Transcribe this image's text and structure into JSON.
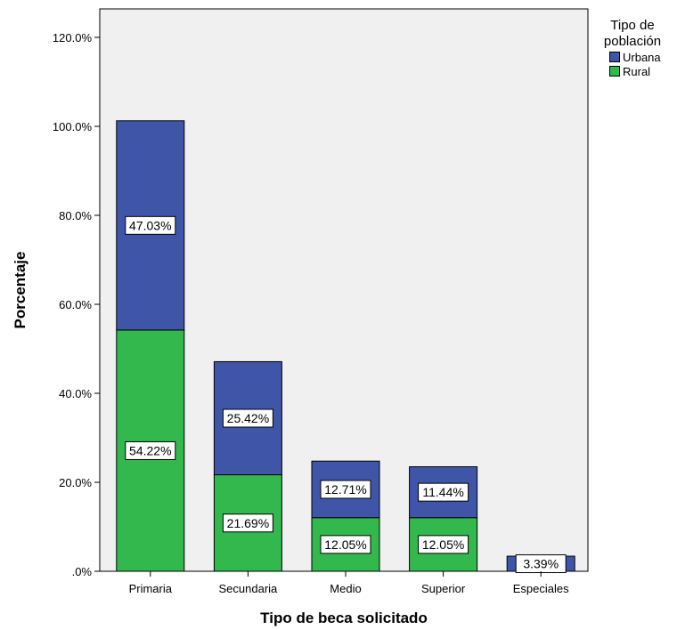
{
  "chart_data": {
    "type": "bar",
    "stacked": true,
    "categories": [
      "Primaria",
      "Secundaria",
      "Medio",
      "Superior",
      "Especiales"
    ],
    "series": [
      {
        "name": "Rural",
        "color": "#33b84e",
        "values": [
          54.22,
          21.69,
          12.05,
          12.05,
          0
        ]
      },
      {
        "name": "Urbana",
        "color": "#3f56a8",
        "values": [
          47.03,
          25.42,
          12.71,
          11.44,
          3.39
        ]
      }
    ],
    "data_labels": [
      [
        "54.22%",
        "21.69%",
        "12.05%",
        "12.05%",
        ""
      ],
      [
        "47.03%",
        "25.42%",
        "12.71%",
        "11.44%",
        "3.39%"
      ]
    ],
    "xlabel": "Tipo de beca solicitado",
    "ylabel": "Porcentaje",
    "ylim": [
      0,
      120
    ],
    "yticks": [
      0,
      20,
      40,
      60,
      80,
      100,
      120
    ],
    "ytick_labels": [
      ".0%",
      "20.0%",
      "40.0%",
      "60.0%",
      "80.0%",
      "100.0%",
      "120.0%"
    ],
    "legend_title": "Tipo de población",
    "legend_title_lines": [
      "Tipo de",
      "población"
    ],
    "legend_position": "top-right",
    "plot_background": "#f0f0f0",
    "grid": false
  }
}
